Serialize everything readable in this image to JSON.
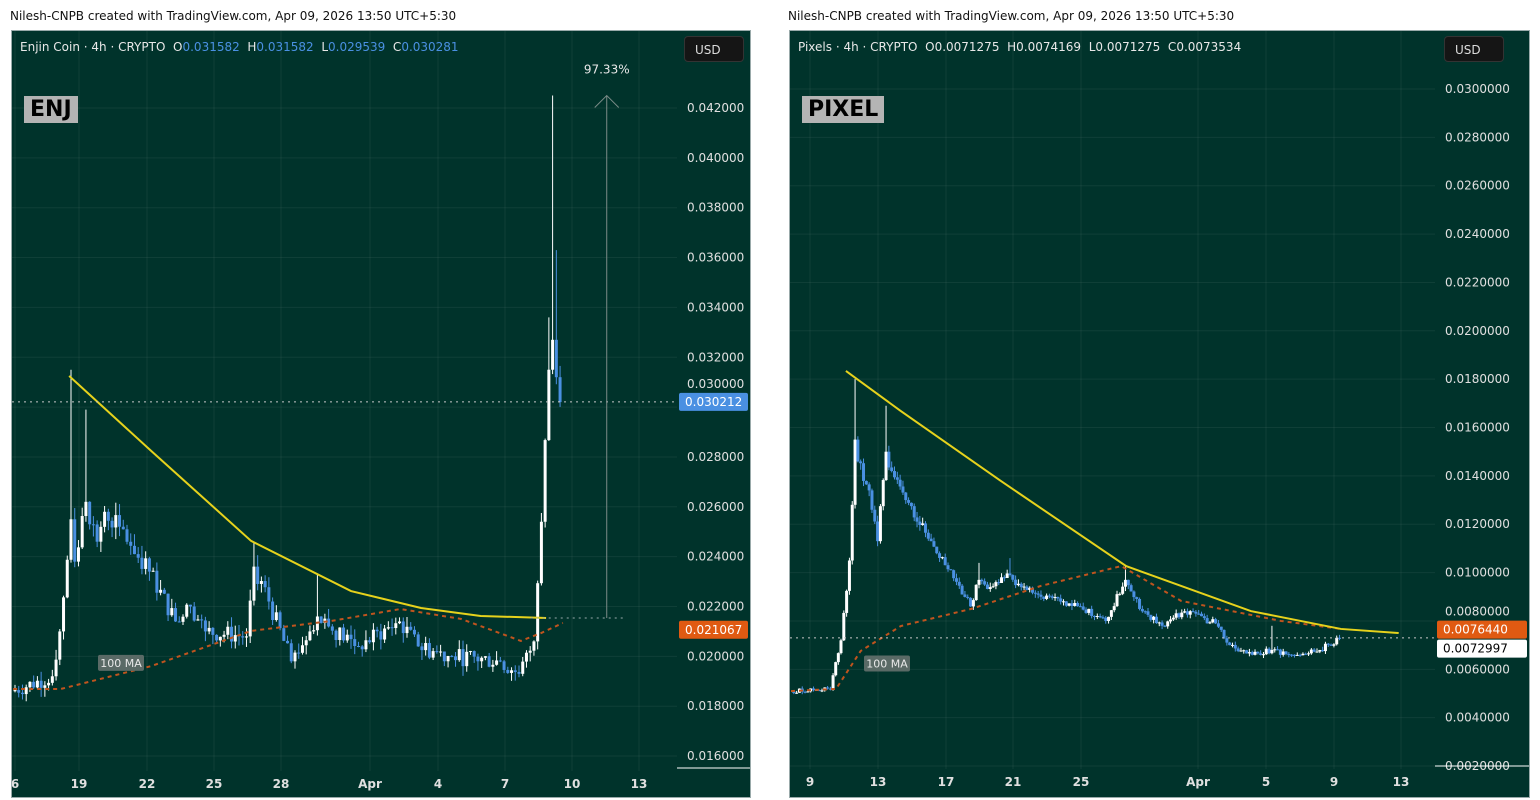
{
  "credits": [
    "Nilesh-CNPB created with TradingView.com, Apr 09, 2026 13:50 UTC+5:30",
    "Nilesh-CNPB created with TradingView.com, Apr 09, 2026 13:50 UTC+5:30"
  ],
  "colors": {
    "background": "#00332b",
    "up": "#ffffff",
    "down": "#4a90e2",
    "trendline": "#e6d21c",
    "ma": "#c0541e",
    "last_price_enj": "#4a90e2",
    "ma_tag": "#e05a12"
  },
  "chart_data": [
    {
      "type": "candlestick",
      "symbol": "Enjin Coin",
      "interval": "4h",
      "exchange": "CRYPTO",
      "ticker_label": "ENJ",
      "ohlc": {
        "o_label": "O",
        "o": "0.031582",
        "h_label": "H",
        "h": "0.031582",
        "l_label": "L",
        "l": "0.029539",
        "c_label": "C",
        "c": "0.030281"
      },
      "currency": "USD",
      "yticks": [
        "0.042000",
        "0.040000",
        "0.038000",
        "0.036000",
        "0.034000",
        "0.032000",
        "0.030000",
        "0.028000",
        "0.026000",
        "0.024000",
        "0.022000",
        "0.020000",
        "0.018000",
        "0.016000"
      ],
      "ylim": [
        0.016,
        0.042
      ],
      "xticks": [
        "6",
        "19",
        "22",
        "25",
        "28",
        "Apr",
        "4",
        "7",
        "10",
        "13"
      ],
      "last_price": "0.030212",
      "ma_price_tag": "0.021067",
      "ma_label": "100 MA",
      "measure_label": "97.33%",
      "measure": {
        "date": "2026-04-11T10:00",
        "from": 0.02154,
        "to": 0.0425
      },
      "price_keypoints": [
        {
          "t": "2026-03-15T20:00",
          "p": 0.0186
        },
        {
          "t": "2026-03-17T16:00",
          "p": 0.0192
        },
        {
          "t": "2026-03-18T00:00",
          "p": 0.021
        },
        {
          "t": "2026-03-18T12:00",
          "p": 0.0255,
          "high": 0.0315
        },
        {
          "t": "2026-03-18T16:00",
          "p": 0.0238
        },
        {
          "t": "2026-03-19T04:00",
          "p": 0.0262,
          "high": 0.0299
        },
        {
          "t": "2026-03-19T16:00",
          "p": 0.0246
        },
        {
          "t": "2026-03-20T00:00",
          "p": 0.0258
        },
        {
          "t": "2026-03-20T16:00",
          "p": 0.0252
        },
        {
          "t": "2026-03-22T00:00",
          "p": 0.0234
        },
        {
          "t": "2026-03-23T04:00",
          "p": 0.0214
        },
        {
          "t": "2026-03-23T20:00",
          "p": 0.022
        },
        {
          "t": "2026-03-24T12:00",
          "p": 0.021
        },
        {
          "t": "2026-03-26T08:00",
          "p": 0.0208
        },
        {
          "t": "2026-03-26T16:00",
          "p": 0.0236,
          "high": 0.0246
        },
        {
          "t": "2026-03-27T08:00",
          "p": 0.0222
        },
        {
          "t": "2026-03-28T08:00",
          "p": 0.0198
        },
        {
          "t": "2026-03-29T04:00",
          "p": 0.021
        },
        {
          "t": "2026-03-29T12:00",
          "p": 0.0216,
          "high": 0.0233
        },
        {
          "t": "2026-03-30T00:00",
          "p": 0.0212
        },
        {
          "t": "2026-03-31T08:00",
          "p": 0.0204
        },
        {
          "t": "2026-04-02T04:00",
          "p": 0.0214
        },
        {
          "t": "2026-04-03T00:00",
          "p": 0.0204
        },
        {
          "t": "2026-04-04T12:00",
          "p": 0.02
        },
        {
          "t": "2026-04-06T16:00",
          "p": 0.0198
        },
        {
          "t": "2026-04-07T12:00",
          "p": 0.0193
        },
        {
          "t": "2026-04-08T04:00",
          "p": 0.0206
        },
        {
          "t": "2026-04-08T12:00",
          "p": 0.0254
        },
        {
          "t": "2026-04-08T20:00",
          "p": 0.0315,
          "high": 0.0336
        },
        {
          "t": "2026-04-09T00:00",
          "p": 0.0327,
          "high": 0.0425
        },
        {
          "t": "2026-04-09T04:00",
          "p": 0.0312,
          "high": 0.0363
        },
        {
          "t": "2026-04-09T08:00",
          "p": 0.0302
        }
      ],
      "trendline": [
        {
          "t": "2026-03-18T10:00",
          "p": 0.03125
        },
        {
          "t": "2026-03-22T02:00",
          "p": 0.02824
        },
        {
          "t": "2026-03-26T13:00",
          "p": 0.02463
        },
        {
          "t": "2026-03-31T00:00",
          "p": 0.02262
        },
        {
          "t": "2026-04-03T03:00",
          "p": 0.02194
        },
        {
          "t": "2026-04-05T19:00",
          "p": 0.02162
        },
        {
          "t": "2026-04-08T17:00",
          "p": 0.02154
        }
      ],
      "ma100": [
        {
          "t": "2026-03-15T22:00",
          "p": 0.01869
        },
        {
          "t": "2026-03-18T01:00",
          "p": 0.01869
        },
        {
          "t": "2026-03-22T02:00",
          "p": 0.01961
        },
        {
          "t": "2026-03-26T13:00",
          "p": 0.02102
        },
        {
          "t": "2026-03-30T03:00",
          "p": 0.02142
        },
        {
          "t": "2026-04-02T05:00",
          "p": 0.0219
        },
        {
          "t": "2026-04-04T22:00",
          "p": 0.0215
        },
        {
          "t": "2026-04-07T14:00",
          "p": 0.02062
        },
        {
          "t": "2026-04-08T12:00",
          "p": 0.02094
        },
        {
          "t": "2026-04-09T11:00",
          "p": 0.02134
        }
      ]
    },
    {
      "type": "candlestick",
      "symbol": "Pixels",
      "interval": "4h",
      "exchange": "CRYPTO",
      "ticker_label": "PIXEL",
      "ohlc": {
        "o_label": "O",
        "o": "0.0071275",
        "h_label": "H",
        "h": "0.0074169",
        "l_label": "L",
        "l": "0.0071275",
        "c_label": "C",
        "c": "0.0073534"
      },
      "currency": "USD",
      "yticks": [
        "0.0300000",
        "0.0280000",
        "0.0260000",
        "0.0240000",
        "0.0220000",
        "0.0200000",
        "0.0180000",
        "0.0160000",
        "0.0140000",
        "0.0120000",
        "0.0100000",
        "0.0080000",
        "0.0060000",
        "0.0040000",
        "0.0020000"
      ],
      "ylim": [
        0.002,
        0.03
      ],
      "xticks": [
        "9",
        "13",
        "17",
        "21",
        "25",
        "Apr",
        "5",
        "9",
        "13"
      ],
      "last_price": "0.0072997",
      "ma_price_tag": "0.0076440",
      "ma_label": "100 MA",
      "price_keypoints": [
        {
          "t": "2026-03-07T21:00",
          "p": 0.0051
        },
        {
          "t": "2026-03-10T05:00",
          "p": 0.0052
        },
        {
          "t": "2026-03-10T20:00",
          "p": 0.0072
        },
        {
          "t": "2026-03-11T08:00",
          "p": 0.0105
        },
        {
          "t": "2026-03-11T16:00",
          "p": 0.0155,
          "high": 0.018
        },
        {
          "t": "2026-03-11T20:00",
          "p": 0.0146
        },
        {
          "t": "2026-03-12T12:00",
          "p": 0.0134
        },
        {
          "t": "2026-03-13T00:00",
          "p": 0.0113
        },
        {
          "t": "2026-03-13T12:00",
          "p": 0.015,
          "high": 0.0169
        },
        {
          "t": "2026-03-13T20:00",
          "p": 0.0142
        },
        {
          "t": "2026-03-14T16:00",
          "p": 0.013
        },
        {
          "t": "2026-03-16T04:00",
          "p": 0.0113
        },
        {
          "t": "2026-03-17T08:00",
          "p": 0.0101
        },
        {
          "t": "2026-03-18T12:00",
          "p": 0.0086
        },
        {
          "t": "2026-03-19T00:00",
          "p": 0.0097,
          "high": 0.0104
        },
        {
          "t": "2026-03-19T16:00",
          "p": 0.0094
        },
        {
          "t": "2026-03-20T20:00",
          "p": 0.0099,
          "high": 0.0106
        },
        {
          "t": "2026-03-21T12:00",
          "p": 0.0094
        },
        {
          "t": "2026-03-22T16:00",
          "p": 0.009
        },
        {
          "t": "2026-03-23T20:00",
          "p": 0.0088
        },
        {
          "t": "2026-03-25T00:00",
          "p": 0.0086
        },
        {
          "t": "2026-03-26T12:00",
          "p": 0.008
        },
        {
          "t": "2026-03-27T16:00",
          "p": 0.0097,
          "high": 0.0103
        },
        {
          "t": "2026-03-28T16:00",
          "p": 0.0084
        },
        {
          "t": "2026-03-29T20:00",
          "p": 0.0078
        },
        {
          "t": "2026-03-31T04:00",
          "p": 0.0084
        },
        {
          "t": "2026-04-02T00:00",
          "p": 0.0079
        },
        {
          "t": "2026-04-02T20:00",
          "p": 0.007
        },
        {
          "t": "2026-04-04T04:00",
          "p": 0.0066
        },
        {
          "t": "2026-04-05T08:00",
          "p": 0.0068,
          "high": 0.0078
        },
        {
          "t": "2026-04-06T12:00",
          "p": 0.0066
        },
        {
          "t": "2026-04-08T04:00",
          "p": 0.0068
        },
        {
          "t": "2026-04-09T08:00",
          "p": 0.0073
        }
      ],
      "trendline": [
        {
          "t": "2026-03-11T03:00",
          "p": 0.01834
        },
        {
          "t": "2026-03-14T09:00",
          "p": 0.01668
        },
        {
          "t": "2026-03-20T07:00",
          "p": 0.01379
        },
        {
          "t": "2026-03-27T17:00",
          "p": 0.01027
        },
        {
          "t": "2026-04-04T02:00",
          "p": 0.00841
        },
        {
          "t": "2026-04-09T10:00",
          "p": 0.00767
        },
        {
          "t": "2026-04-12T20:00",
          "p": 0.0075
        }
      ],
      "ma100": [
        {
          "t": "2026-03-07T21:00",
          "p": 0.0051
        },
        {
          "t": "2026-03-10T13:00",
          "p": 0.00519
        },
        {
          "t": "2026-03-12T00:00",
          "p": 0.00676
        },
        {
          "t": "2026-03-14T09:00",
          "p": 0.00779
        },
        {
          "t": "2026-03-18T13:00",
          "p": 0.0085
        },
        {
          "t": "2026-03-22T16:00",
          "p": 0.00945
        },
        {
          "t": "2026-03-27T10:00",
          "p": 0.01027
        },
        {
          "t": "2026-03-30T23:00",
          "p": 0.00883
        },
        {
          "t": "2026-04-05T21:00",
          "p": 0.008
        },
        {
          "t": "2026-04-09T10:00",
          "p": 0.00767
        }
      ]
    }
  ]
}
